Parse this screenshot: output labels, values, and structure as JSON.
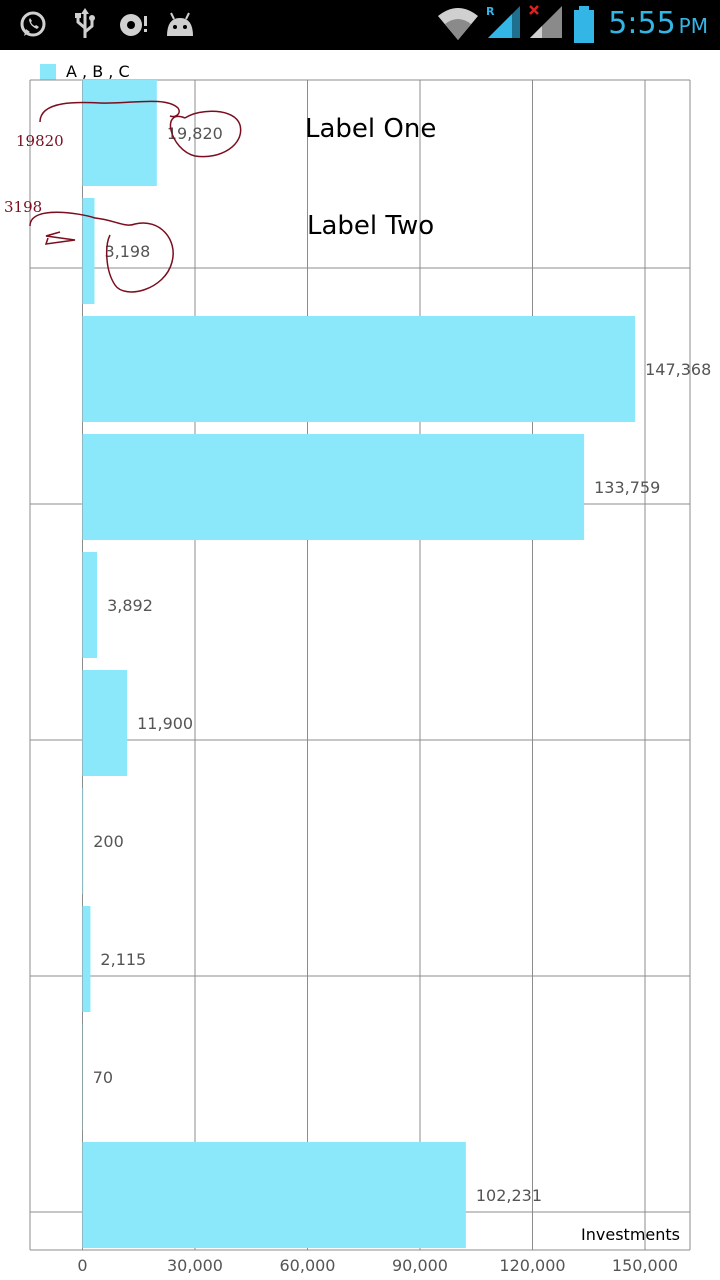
{
  "status_bar": {
    "time": "5:55",
    "ampm": "PM",
    "icons": [
      "whatsapp-icon",
      "usb-icon",
      "sync-icon",
      "android-icon",
      "wifi-icon",
      "signal-roaming-icon",
      "signal-no-sim-icon",
      "battery-icon"
    ],
    "roaming_badge": "R",
    "accent": "#33b5e5"
  },
  "chart_data": {
    "type": "bar",
    "orientation": "horizontal",
    "legend": {
      "label": "A , B , C",
      "position": "top-left"
    },
    "series": [
      {
        "name": "A , B , C",
        "color": "#8be8fb",
        "values": [
          19820,
          3198,
          147368,
          133759,
          3892,
          11900,
          200,
          2115,
          70,
          102231
        ]
      }
    ],
    "value_labels": [
      "19,820",
      "3,198",
      "147,368",
      "133,759",
      "3,892",
      "11,900",
      "200",
      "2,115",
      "70",
      "102,231"
    ],
    "xlim": [
      -14000,
      162000
    ],
    "x_ticks": [
      0,
      30000,
      60000,
      90000,
      120000,
      150000
    ],
    "x_tick_labels": [
      "0",
      "30,000",
      "60,000",
      "90,000",
      "120,000",
      "150,000"
    ],
    "description_label": "Investments",
    "grid": true
  },
  "annotations": {
    "label_one": "Label One",
    "label_two": "Label Two",
    "hand_value_1": "19820",
    "hand_value_2": "3198"
  }
}
